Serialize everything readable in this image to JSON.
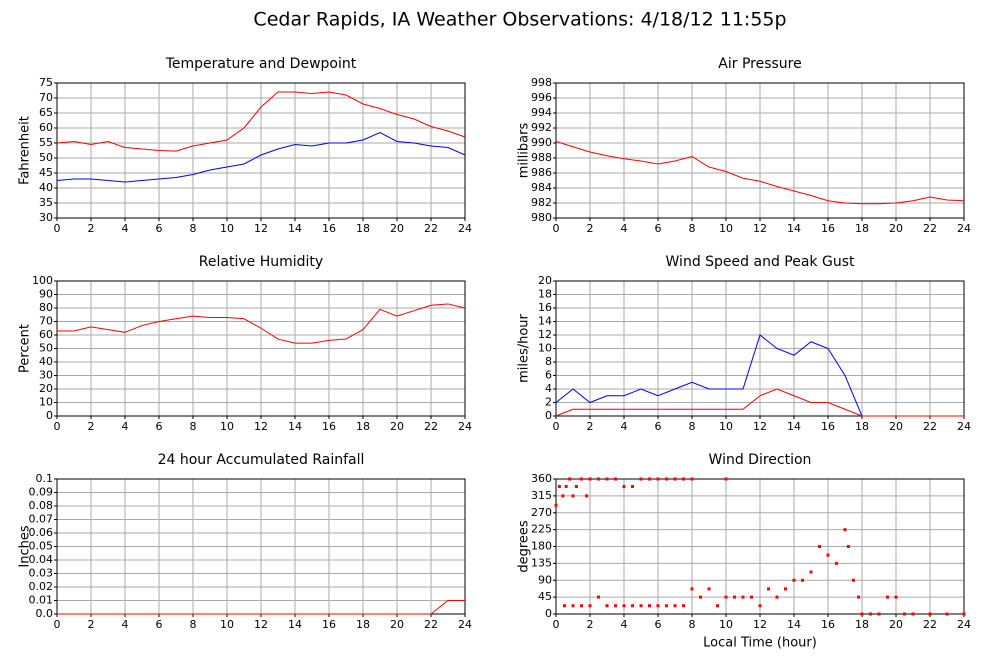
{
  "title": "Cedar Rapids, IA Weather Observations: 4/18/12 11:55p",
  "chart_data": [
    {
      "type": "line",
      "title": "Temperature and Dewpoint",
      "y_label": "Fahrenheit",
      "x": [
        0,
        1,
        2,
        3,
        4,
        5,
        6,
        7,
        8,
        9,
        10,
        11,
        12,
        13,
        14,
        15,
        16,
        17,
        18,
        19,
        20,
        21,
        22,
        23,
        24
      ],
      "series": [
        {
          "color": "#ff0000",
          "values": [
            55,
            55.5,
            54.5,
            55.5,
            53.5,
            53,
            52.5,
            52.3,
            54,
            55,
            56,
            60,
            67,
            72,
            72,
            71.5,
            72,
            71,
            68,
            66.5,
            64.5,
            63,
            60.5,
            59,
            57
          ]
        },
        {
          "color": "#0000ff",
          "values": [
            42.5,
            43,
            43,
            42.5,
            42,
            42.5,
            43,
            43.5,
            44.5,
            46,
            47,
            48,
            51,
            53,
            54.5,
            54,
            55,
            55,
            56,
            58.5,
            55.5,
            55,
            54,
            53.5,
            51
          ]
        }
      ],
      "xlim": [
        0,
        24
      ],
      "xticks": [
        0,
        2,
        4,
        6,
        8,
        10,
        12,
        14,
        16,
        18,
        20,
        22,
        24
      ],
      "ylim": [
        30,
        75
      ],
      "yticks": [
        30,
        35,
        40,
        45,
        50,
        55,
        60,
        65,
        70,
        75
      ],
      "grid": true
    },
    {
      "type": "line",
      "title": "Air Pressure",
      "y_label": "millibars",
      "x": [
        0,
        1,
        2,
        3,
        4,
        5,
        6,
        7,
        8,
        9,
        10,
        11,
        12,
        13,
        14,
        15,
        16,
        17,
        18,
        19,
        20,
        21,
        22,
        23,
        24
      ],
      "series": [
        {
          "color": "#ff0000",
          "values": [
            990.2,
            989.5,
            988.8,
            988.3,
            987.9,
            987.6,
            987.2,
            987.6,
            988.2,
            986.8,
            986.2,
            985.3,
            984.9,
            984.2,
            983.6,
            983,
            982.3,
            982,
            981.9,
            981.9,
            982,
            982.3,
            982.8,
            982.4,
            982.3
          ]
        }
      ],
      "xlim": [
        0,
        24
      ],
      "xticks": [
        0,
        2,
        4,
        6,
        8,
        10,
        12,
        14,
        16,
        18,
        20,
        22,
        24
      ],
      "ylim": [
        980,
        998
      ],
      "yticks": [
        980,
        982,
        984,
        986,
        988,
        990,
        992,
        994,
        996,
        998
      ],
      "grid": true
    },
    {
      "type": "line",
      "title": "Relative Humidity",
      "y_label": "Percent",
      "x": [
        0,
        1,
        2,
        3,
        4,
        5,
        6,
        7,
        8,
        9,
        10,
        11,
        12,
        13,
        14,
        15,
        16,
        17,
        18,
        19,
        20,
        21,
        22,
        23,
        24
      ],
      "series": [
        {
          "color": "#ff0000",
          "values": [
            63,
            63,
            66,
            64,
            62,
            67,
            70,
            72,
            74,
            73,
            73,
            72,
            65,
            57,
            54,
            54,
            56,
            57,
            64,
            79,
            74,
            78,
            82,
            83,
            80
          ]
        }
      ],
      "xlim": [
        0,
        24
      ],
      "xticks": [
        0,
        2,
        4,
        6,
        8,
        10,
        12,
        14,
        16,
        18,
        20,
        22,
        24
      ],
      "ylim": [
        0,
        100
      ],
      "yticks": [
        0,
        10,
        20,
        30,
        40,
        50,
        60,
        70,
        80,
        90,
        100
      ],
      "grid": true
    },
    {
      "type": "line",
      "title": "Wind Speed and Peak Gust",
      "y_label": "miles/hour",
      "x": [
        0,
        1,
        2,
        3,
        4,
        5,
        6,
        7,
        8,
        9,
        10,
        11,
        12,
        13,
        14,
        15,
        16,
        17,
        18,
        19,
        20,
        21,
        22,
        23,
        24
      ],
      "series": [
        {
          "color": "#0000ff",
          "values": [
            2,
            4,
            2,
            3,
            3,
            4,
            3,
            4,
            5,
            4,
            4,
            4,
            12,
            10,
            9,
            11,
            10,
            6,
            0,
            0,
            0,
            0,
            0,
            0,
            0
          ]
        },
        {
          "color": "#ff0000",
          "values": [
            0,
            1,
            1,
            1,
            1,
            1,
            1,
            1,
            1,
            1,
            1,
            1,
            3,
            4,
            3,
            2,
            2,
            1,
            0,
            0,
            0,
            0,
            0,
            0,
            0
          ]
        }
      ],
      "xlim": [
        0,
        24
      ],
      "xticks": [
        0,
        2,
        4,
        6,
        8,
        10,
        12,
        14,
        16,
        18,
        20,
        22,
        24
      ],
      "ylim": [
        0,
        20
      ],
      "yticks": [
        0,
        2,
        4,
        6,
        8,
        10,
        12,
        14,
        16,
        18,
        20
      ],
      "grid": true
    },
    {
      "type": "line",
      "title": "24 hour Accumulated Rainfall",
      "y_label": "Inches",
      "x": [
        0,
        1,
        2,
        3,
        4,
        5,
        6,
        7,
        8,
        9,
        10,
        11,
        12,
        13,
        14,
        15,
        16,
        17,
        18,
        19,
        20,
        21,
        22,
        23,
        24
      ],
      "series": [
        {
          "color": "#ff0000",
          "values": [
            0,
            0,
            0,
            0,
            0,
            0,
            0,
            0,
            0,
            0,
            0,
            0,
            0,
            0,
            0,
            0,
            0,
            0,
            0,
            0,
            0,
            0,
            0,
            0.01,
            0.01
          ]
        }
      ],
      "xlim": [
        0,
        24
      ],
      "xticks": [
        0,
        2,
        4,
        6,
        8,
        10,
        12,
        14,
        16,
        18,
        20,
        22,
        24
      ],
      "ylim": [
        0,
        0.1
      ],
      "yticks": [
        {
          "value": 0,
          "label": "0.0"
        },
        0.01,
        0.02,
        0.03,
        0.04,
        0.05,
        0.06,
        0.07,
        0.08,
        0.09,
        0.1
      ],
      "grid": true
    },
    {
      "type": "scatter",
      "title": "Wind Direction",
      "y_label": "degrees",
      "x_label": "Local Time (hour)",
      "x": [
        0,
        0.2,
        0.4,
        0.6,
        0.8,
        1,
        1.2,
        1.5,
        1.8,
        2,
        2.5,
        3,
        3.5,
        4,
        4.5,
        5,
        5.5,
        6,
        6.5,
        7,
        7.5,
        8,
        10,
        0.5,
        1,
        1.5,
        2,
        2.5,
        3,
        3.5,
        4,
        4.5,
        5,
        5.5,
        6,
        6.5,
        7,
        7.5,
        8,
        8.5,
        9,
        9.5,
        10,
        10.5,
        11,
        11.5,
        12,
        12.5,
        13,
        13.5,
        14,
        14.5,
        15,
        15.5,
        16,
        16.5,
        17,
        17.2,
        17.5,
        17.8,
        18,
        18.5,
        19,
        19.5,
        20,
        20.5,
        21,
        22,
        23,
        24
      ],
      "series": [
        {
          "color": "#ff0000",
          "values": [
            290,
            340,
            315,
            340,
            360,
            315,
            340,
            360,
            315,
            360,
            360,
            360,
            360,
            340,
            340,
            360,
            360,
            360,
            360,
            360,
            360,
            360,
            360,
            22,
            22,
            22,
            22,
            45,
            22,
            22,
            22,
            22,
            22,
            22,
            22,
            22,
            22,
            22,
            67,
            45,
            67,
            22,
            45,
            45,
            45,
            45,
            22,
            67,
            45,
            67,
            90,
            90,
            112,
            180,
            157,
            135,
            225,
            180,
            90,
            45,
            0,
            0,
            0,
            45,
            45,
            0,
            0,
            0,
            0,
            0
          ]
        }
      ],
      "xlim": [
        0,
        24
      ],
      "xticks": [
        0,
        2,
        4,
        6,
        8,
        10,
        12,
        14,
        16,
        18,
        20,
        22,
        24
      ],
      "ylim": [
        0,
        360
      ],
      "yticks": [
        0,
        45,
        90,
        135,
        180,
        225,
        270,
        315,
        360
      ],
      "grid": true
    }
  ]
}
